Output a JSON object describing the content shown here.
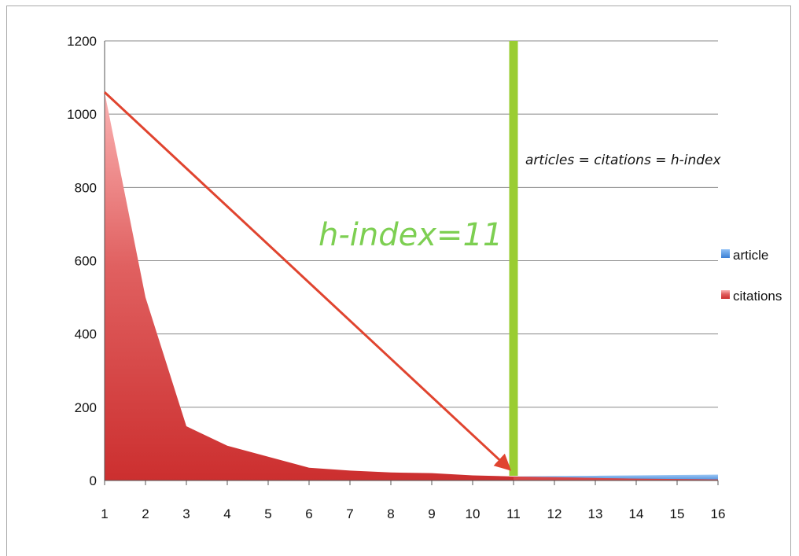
{
  "chart_data": {
    "type": "area",
    "x": [
      1,
      2,
      3,
      4,
      5,
      6,
      7,
      8,
      9,
      10,
      11,
      12,
      13,
      14,
      15,
      16
    ],
    "xlim": [
      1,
      16
    ],
    "ylim": [
      0,
      1200
    ],
    "yticks": [
      0,
      200,
      400,
      600,
      800,
      1000,
      1200
    ],
    "grid": true,
    "legend_position": "right",
    "series": [
      {
        "name": "article",
        "color": "#4a90e2",
        "values": [
          1,
          2,
          3,
          4,
          5,
          6,
          7,
          8,
          9,
          10,
          11,
          12,
          13,
          14,
          15,
          16
        ]
      },
      {
        "name": "citations",
        "color": "#d63a3a",
        "values": [
          1060,
          500,
          148,
          95,
          65,
          35,
          27,
          22,
          20,
          14,
          11,
          9,
          7,
          5,
          4,
          3
        ]
      }
    ],
    "annotations": {
      "h_index_label": "h-index=11",
      "relation_label": "articles = citations = h-index",
      "h_index_x": 11,
      "arrow_from": [
        1,
        1060
      ],
      "arrow_to": [
        11,
        11
      ],
      "marker_color": "#9acd32",
      "arrow_color": "#e0442f"
    }
  }
}
